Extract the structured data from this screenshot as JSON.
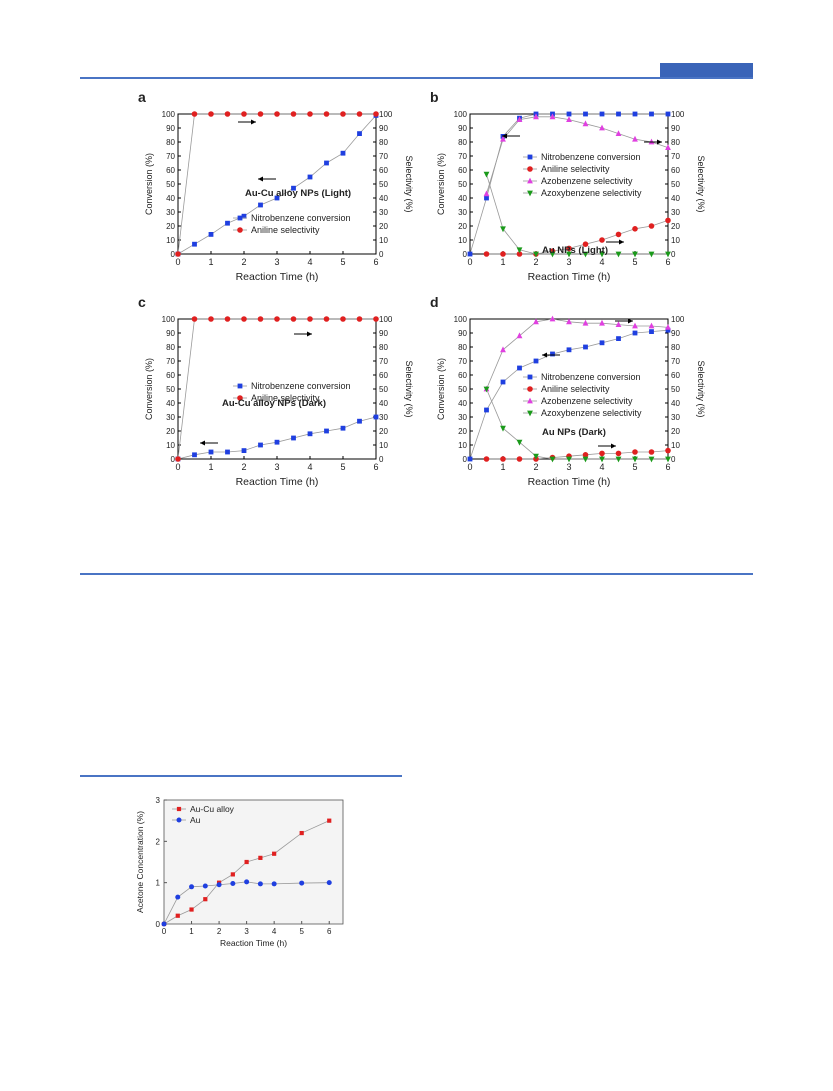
{
  "colors": {
    "rule": "#4a74c4",
    "tab": "#3a64b8",
    "blue": "#1f3fe0",
    "red": "#e02020",
    "magenta": "#e040e0",
    "green": "#1a9a1a",
    "connector": "#999999"
  },
  "chart_data": [
    {
      "panel": "a",
      "type": "line",
      "title_main": "Au-Cu alloy NPs (",
      "title_bold": "Light",
      "title_end": ")",
      "xlabel": "Reaction Time (h)",
      "ylabel_left": "Conversion (%)",
      "ylabel_right": "Selectivity (%)",
      "xlim": [
        0,
        6
      ],
      "ylim": [
        0,
        100
      ],
      "series": [
        {
          "name": "Nitrobenzene conversion",
          "axis": "left",
          "color": "#1f3fe0",
          "marker": "square",
          "x": [
            0,
            0.5,
            1,
            1.5,
            2,
            2.5,
            3,
            3.5,
            4,
            4.5,
            5,
            5.5,
            6
          ],
          "y": [
            0,
            7,
            14,
            22,
            27,
            35,
            40,
            47,
            55,
            65,
            72,
            86,
            99
          ]
        },
        {
          "name": "Aniline selectivity",
          "axis": "right",
          "color": "#e02020",
          "marker": "circle",
          "x": [
            0,
            0.5,
            1,
            1.5,
            2,
            2.5,
            3,
            3.5,
            4,
            4.5,
            5,
            5.5,
            6
          ],
          "y": [
            0,
            100,
            100,
            100,
            100,
            100,
            100,
            100,
            100,
            100,
            100,
            100,
            100
          ]
        }
      ]
    },
    {
      "panel": "b",
      "type": "line",
      "title_main": "Au NPs (",
      "title_bold": "Light",
      "title_end": ")",
      "xlabel": "Reaction Time (h)",
      "ylabel_left": "Conversion (%)",
      "ylabel_right": "Selectivity (%)",
      "xlim": [
        0,
        6
      ],
      "ylim": [
        0,
        100
      ],
      "series": [
        {
          "name": "Nitrobenzene conversion",
          "axis": "left",
          "color": "#1f3fe0",
          "marker": "square",
          "x": [
            0,
            0.5,
            1,
            1.5,
            2,
            2.5,
            3,
            3.5,
            4,
            4.5,
            5,
            5.5,
            6
          ],
          "y": [
            0,
            40,
            84,
            97,
            100,
            100,
            100,
            100,
            100,
            100,
            100,
            100,
            100
          ]
        },
        {
          "name": "Aniline selectivity",
          "axis": "right",
          "color": "#e02020",
          "marker": "circle",
          "x": [
            0.5,
            1,
            1.5,
            2,
            2.5,
            3,
            3.5,
            4,
            4.5,
            5,
            5.5,
            6
          ],
          "y": [
            0,
            0,
            0,
            0,
            2,
            4,
            7,
            10,
            14,
            18,
            20,
            24
          ]
        },
        {
          "name": "Azobenzene selectivity",
          "axis": "right",
          "color": "#e040e0",
          "marker": "triangle-up",
          "x": [
            0.5,
            1,
            1.5,
            2,
            2.5,
            3,
            3.5,
            4,
            4.5,
            5,
            5.5,
            6
          ],
          "y": [
            43,
            82,
            96,
            98,
            98,
            96,
            93,
            90,
            86,
            82,
            80,
            76
          ]
        },
        {
          "name": "Azoxybenzene selectivity",
          "axis": "right",
          "color": "#1a9a1a",
          "marker": "triangle-down",
          "x": [
            0.5,
            1,
            1.5,
            2,
            2.5,
            3,
            3.5,
            4,
            4.5,
            5,
            5.5,
            6
          ],
          "y": [
            57,
            18,
            3,
            0,
            0,
            0,
            0,
            0,
            0,
            0,
            0,
            0
          ]
        }
      ]
    },
    {
      "panel": "c",
      "type": "line",
      "title_main": "Au-Cu alloy NPs (",
      "title_bold": "Dark",
      "title_end": ")",
      "xlabel": "Reaction Time (h)",
      "ylabel_left": "Conversion (%)",
      "ylabel_right": "Selectivity (%)",
      "xlim": [
        0,
        6
      ],
      "ylim": [
        0,
        100
      ],
      "series": [
        {
          "name": "Nitrobenzene conversion",
          "axis": "left",
          "color": "#1f3fe0",
          "marker": "square",
          "x": [
            0,
            0.5,
            1,
            1.5,
            2,
            2.5,
            3,
            3.5,
            4,
            4.5,
            5,
            5.5,
            6
          ],
          "y": [
            0,
            3,
            5,
            5,
            6,
            10,
            12,
            15,
            18,
            20,
            22,
            27,
            30
          ]
        },
        {
          "name": "Aniline selectivity",
          "axis": "right",
          "color": "#e02020",
          "marker": "circle",
          "x": [
            0,
            0.5,
            1,
            1.5,
            2,
            2.5,
            3,
            3.5,
            4,
            4.5,
            5,
            5.5,
            6
          ],
          "y": [
            0,
            100,
            100,
            100,
            100,
            100,
            100,
            100,
            100,
            100,
            100,
            100,
            100
          ]
        }
      ]
    },
    {
      "panel": "d",
      "type": "line",
      "title_main": "Au NPs (",
      "title_bold": "Dark",
      "title_end": ")",
      "xlabel": "Reaction Time (h)",
      "ylabel_left": "Conversion (%)",
      "ylabel_right": "Selectivity (%)",
      "xlim": [
        0,
        6
      ],
      "ylim": [
        0,
        100
      ],
      "series": [
        {
          "name": "Nitrobenzene conversion",
          "axis": "left",
          "color": "#1f3fe0",
          "marker": "square",
          "x": [
            0,
            0.5,
            1,
            1.5,
            2,
            2.5,
            3,
            3.5,
            4,
            4.5,
            5,
            5.5,
            6
          ],
          "y": [
            0,
            35,
            55,
            65,
            70,
            75,
            78,
            80,
            83,
            86,
            90,
            91,
            92
          ]
        },
        {
          "name": "Aniline selectivity",
          "axis": "right",
          "color": "#e02020",
          "marker": "circle",
          "x": [
            0.5,
            1,
            1.5,
            2,
            2.5,
            3,
            3.5,
            4,
            4.5,
            5,
            5.5,
            6
          ],
          "y": [
            0,
            0,
            0,
            0,
            1,
            2,
            3,
            4,
            4,
            5,
            5,
            6
          ]
        },
        {
          "name": "Azobenzene selectivity",
          "axis": "right",
          "color": "#e040e0",
          "marker": "triangle-up",
          "x": [
            0.5,
            1,
            1.5,
            2,
            2.5,
            3,
            3.5,
            4,
            4.5,
            5,
            5.5,
            6
          ],
          "y": [
            50,
            78,
            88,
            98,
            100,
            98,
            97,
            97,
            96,
            95,
            95,
            94
          ]
        },
        {
          "name": "Azoxybenzene selectivity",
          "axis": "right",
          "color": "#1a9a1a",
          "marker": "triangle-down",
          "x": [
            0.5,
            1,
            1.5,
            2,
            2.5,
            3,
            3.5,
            4,
            4.5,
            5,
            5.5,
            6
          ],
          "y": [
            50,
            22,
            12,
            2,
            0,
            0,
            0,
            0,
            0,
            0,
            0,
            0
          ]
        }
      ]
    },
    {
      "panel": "",
      "type": "line",
      "xlabel": "Reaction Time (h)",
      "ylabel_left": "Acetone Concentration (%)",
      "xlim": [
        0,
        6.5
      ],
      "ylim": [
        0,
        3
      ],
      "series": [
        {
          "name": "Au-Cu alloy",
          "axis": "left",
          "color": "#e02020",
          "marker": "square",
          "x": [
            0,
            0.5,
            1,
            1.5,
            2,
            2.5,
            3,
            3.5,
            4,
            5,
            6
          ],
          "y": [
            0,
            0.2,
            0.35,
            0.6,
            1.0,
            1.2,
            1.5,
            1.6,
            1.7,
            2.2,
            2.5
          ]
        },
        {
          "name": "Au",
          "axis": "left",
          "color": "#1f3fe0",
          "marker": "circle",
          "x": [
            0,
            0.5,
            1,
            1.5,
            2,
            2.5,
            3,
            3.5,
            4,
            5,
            6
          ],
          "y": [
            0,
            0.65,
            0.9,
            0.92,
            0.95,
            0.98,
            1.02,
            0.97,
            0.97,
            0.99,
            1.0
          ]
        }
      ]
    }
  ]
}
